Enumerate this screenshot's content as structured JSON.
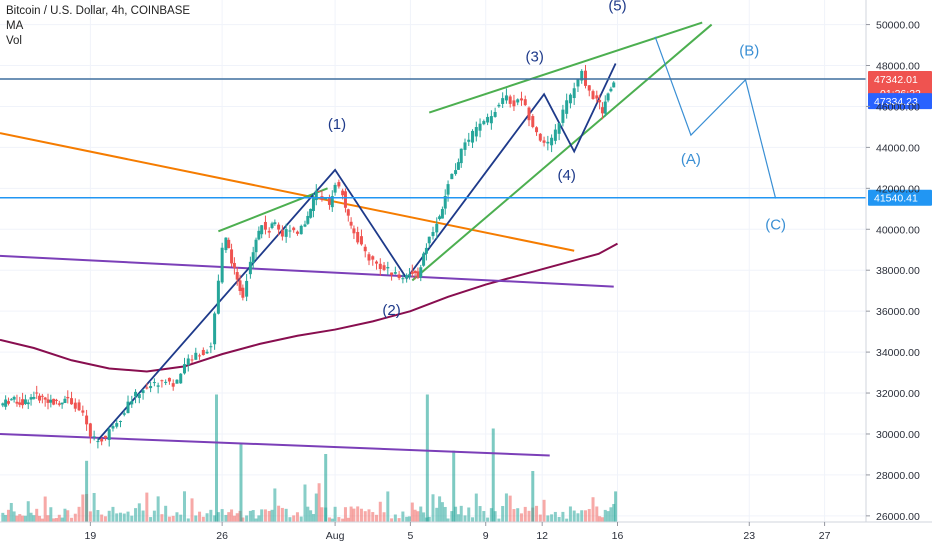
{
  "legend": {
    "title": "Bitcoin / U.S. Dollar, 4h, COINBASE",
    "ma": "MA",
    "vol": "Vol"
  },
  "chart_data": {
    "type": "candlestick",
    "symbol": "Bitcoin / U.S. Dollar",
    "interval": "4h",
    "exchange": "COINBASE",
    "y_ticks": [
      26000,
      28000,
      30000,
      32000,
      34000,
      36000,
      38000,
      40000,
      42000,
      44000,
      46000,
      48000,
      50000
    ],
    "ylim": [
      25700,
      51200
    ],
    "x_ticks": [
      {
        "label": "19",
        "day": 19
      },
      {
        "label": "26",
        "day": 26
      },
      {
        "label": "Aug",
        "day": 32
      },
      {
        "label": "5",
        "day": 36
      },
      {
        "label": "9",
        "day": 40
      },
      {
        "label": "12",
        "day": 43
      },
      {
        "label": "16",
        "day": 47
      },
      {
        "label": "23",
        "day": 54
      },
      {
        "label": "27",
        "day": 58
      }
    ],
    "xlim_days": [
      14.2,
      60.2
    ],
    "price_tags": [
      {
        "value": 47342.01,
        "label": "47342.01",
        "sublabel": "01:26:22",
        "color": "#ef5350",
        "line": true
      },
      {
        "value": 47334.23,
        "label": "47334.23",
        "color": "#2962ff",
        "line": false
      },
      {
        "value": 41540.41,
        "label": "41540.41",
        "color": "#2196f3",
        "line": true
      }
    ],
    "closes": [
      [
        14.2,
        31400
      ],
      [
        14.8,
        31700
      ],
      [
        15.4,
        31500
      ],
      [
        16.0,
        31900
      ],
      [
        16.6,
        31700
      ],
      [
        17.2,
        31500
      ],
      [
        17.8,
        31800
      ],
      [
        18.2,
        31400
      ],
      [
        18.6,
        30900
      ],
      [
        19.0,
        29900
      ],
      [
        19.4,
        29700
      ],
      [
        19.8,
        29800
      ],
      [
        20.2,
        30500
      ],
      [
        20.6,
        30800
      ],
      [
        21.0,
        31500
      ],
      [
        21.4,
        31900
      ],
      [
        21.8,
        32200
      ],
      [
        22.2,
        32400
      ],
      [
        22.6,
        32500
      ],
      [
        23.0,
        32700
      ],
      [
        23.4,
        32400
      ],
      [
        23.8,
        32900
      ],
      [
        24.2,
        33600
      ],
      [
        24.6,
        33900
      ],
      [
        25.0,
        34000
      ],
      [
        25.4,
        34300
      ],
      [
        25.8,
        37500
      ],
      [
        26.0,
        39000
      ],
      [
        26.2,
        39500
      ],
      [
        26.5,
        38500
      ],
      [
        26.8,
        37400
      ],
      [
        27.1,
        36800
      ],
      [
        27.5,
        38500
      ],
      [
        27.8,
        39600
      ],
      [
        28.1,
        40200
      ],
      [
        28.5,
        39900
      ],
      [
        28.8,
        40400
      ],
      [
        29.2,
        39700
      ],
      [
        29.6,
        40100
      ],
      [
        30.0,
        39900
      ],
      [
        30.4,
        40300
      ],
      [
        30.7,
        41000
      ],
      [
        31.0,
        41800
      ],
      [
        31.3,
        41600
      ],
      [
        31.7,
        41200
      ],
      [
        32.0,
        42300
      ],
      [
        32.4,
        41700
      ],
      [
        32.7,
        40500
      ],
      [
        33.0,
        39800
      ],
      [
        33.4,
        39200
      ],
      [
        33.8,
        38600
      ],
      [
        34.2,
        38300
      ],
      [
        34.6,
        38100
      ],
      [
        35.0,
        37900
      ],
      [
        35.4,
        37600
      ],
      [
        35.8,
        37800
      ],
      [
        36.1,
        37900
      ],
      [
        36.4,
        37700
      ],
      [
        36.7,
        38800
      ],
      [
        37.0,
        39600
      ],
      [
        37.4,
        40400
      ],
      [
        37.7,
        40900
      ],
      [
        38.0,
        42300
      ],
      [
        38.4,
        43000
      ],
      [
        38.7,
        43800
      ],
      [
        39.1,
        44400
      ],
      [
        39.5,
        44900
      ],
      [
        39.9,
        45200
      ],
      [
        40.3,
        45500
      ],
      [
        40.7,
        46200
      ],
      [
        41.1,
        46400
      ],
      [
        41.5,
        46100
      ],
      [
        41.9,
        46400
      ],
      [
        42.3,
        45500
      ],
      [
        42.7,
        44800
      ],
      [
        43.1,
        44100
      ],
      [
        43.5,
        44300
      ],
      [
        43.9,
        45300
      ],
      [
        44.3,
        46200
      ],
      [
        44.7,
        46900
      ],
      [
        45.1,
        47600
      ],
      [
        45.5,
        46700
      ],
      [
        45.9,
        46300
      ],
      [
        46.2,
        45800
      ],
      [
        46.5,
        46600
      ],
      [
        46.8,
        47342
      ]
    ],
    "ma_series": [
      [
        14.2,
        34600
      ],
      [
        16.0,
        34200
      ],
      [
        18.0,
        33600
      ],
      [
        20.0,
        33200
      ],
      [
        22.0,
        33050
      ],
      [
        24.0,
        33300
      ],
      [
        26.0,
        33900
      ],
      [
        28.0,
        34400
      ],
      [
        30.0,
        34800
      ],
      [
        32.0,
        35100
      ],
      [
        34.0,
        35500
      ],
      [
        36.0,
        36000
      ],
      [
        38.0,
        36700
      ],
      [
        40.0,
        37300
      ],
      [
        42.0,
        37800
      ],
      [
        44.0,
        38300
      ],
      [
        46.0,
        38800
      ],
      [
        47.0,
        39300
      ]
    ],
    "trendlines": [
      {
        "name": "orange-trendline",
        "color": "#f57c00",
        "points": [
          [
            14.2,
            44700
          ],
          [
            44.7,
            38950
          ]
        ]
      },
      {
        "name": "purple-trendline-upper",
        "color": "#7b3fb8",
        "points": [
          [
            14.2,
            38700
          ],
          [
            46.8,
            37200
          ]
        ]
      },
      {
        "name": "purple-trendline-lower",
        "color": "#7b3fb8",
        "points": [
          [
            14.2,
            30000
          ],
          [
            43.4,
            28950
          ]
        ]
      },
      {
        "name": "green-channel-lower-left",
        "color": "#4caf50",
        "points": [
          [
            25.8,
            39900
          ],
          [
            31.6,
            42000
          ]
        ]
      },
      {
        "name": "green-channel-upper",
        "color": "#4caf50",
        "points": [
          [
            37.0,
            45700
          ],
          [
            51.5,
            50100
          ]
        ]
      },
      {
        "name": "green-channel-lower",
        "color": "#4caf50",
        "points": [
          [
            36.1,
            37500
          ],
          [
            52.0,
            50000
          ]
        ]
      }
    ],
    "elliott_path": {
      "color": "#1e3a8a",
      "points": [
        [
          19.4,
          29700
        ],
        [
          32.0,
          42900
        ],
        [
          35.8,
          37600
        ],
        [
          43.1,
          46600
        ],
        [
          44.7,
          43800
        ],
        [
          46.9,
          48100
        ]
      ]
    },
    "projection_path": {
      "color": "#3a8fd4",
      "points": [
        [
          49.0,
          49400
        ],
        [
          50.9,
          44600
        ],
        [
          53.8,
          47300
        ],
        [
          55.4,
          41500
        ]
      ]
    },
    "elliott_labels": [
      {
        "text": "(1)",
        "day": 32.1,
        "price": 44900,
        "color": "#1e3a8a"
      },
      {
        "text": "(2)",
        "day": 35.0,
        "price": 35800,
        "color": "#1e3a8a"
      },
      {
        "text": "(3)",
        "day": 42.6,
        "price": 48200,
        "color": "#1e3a8a"
      },
      {
        "text": "(4)",
        "day": 44.3,
        "price": 42400,
        "color": "#1e3a8a"
      },
      {
        "text": "(5)",
        "day": 47.0,
        "price": 50700,
        "color": "#1e3a8a"
      },
      {
        "text": "(A)",
        "day": 50.9,
        "price": 43200,
        "color": "#3a8fd4"
      },
      {
        "text": "(B)",
        "day": 54.0,
        "price": 48500,
        "color": "#3a8fd4"
      },
      {
        "text": "(C)",
        "day": 55.4,
        "price": 40000,
        "color": "#3a8fd4"
      }
    ],
    "volume_markers": [
      {
        "day": 25.7,
        "level": 0.75
      },
      {
        "day": 36.9,
        "level": 0.75
      },
      {
        "day": 40.4,
        "level": 0.55
      },
      {
        "day": 27.0,
        "level": 0.46
      },
      {
        "day": 38.3,
        "level": 0.42
      },
      {
        "day": 31.5,
        "level": 0.4
      },
      {
        "day": 18.8,
        "level": 0.36
      },
      {
        "day": 42.5,
        "level": 0.3
      },
      {
        "day": 46.9,
        "level": 0.18
      }
    ]
  }
}
